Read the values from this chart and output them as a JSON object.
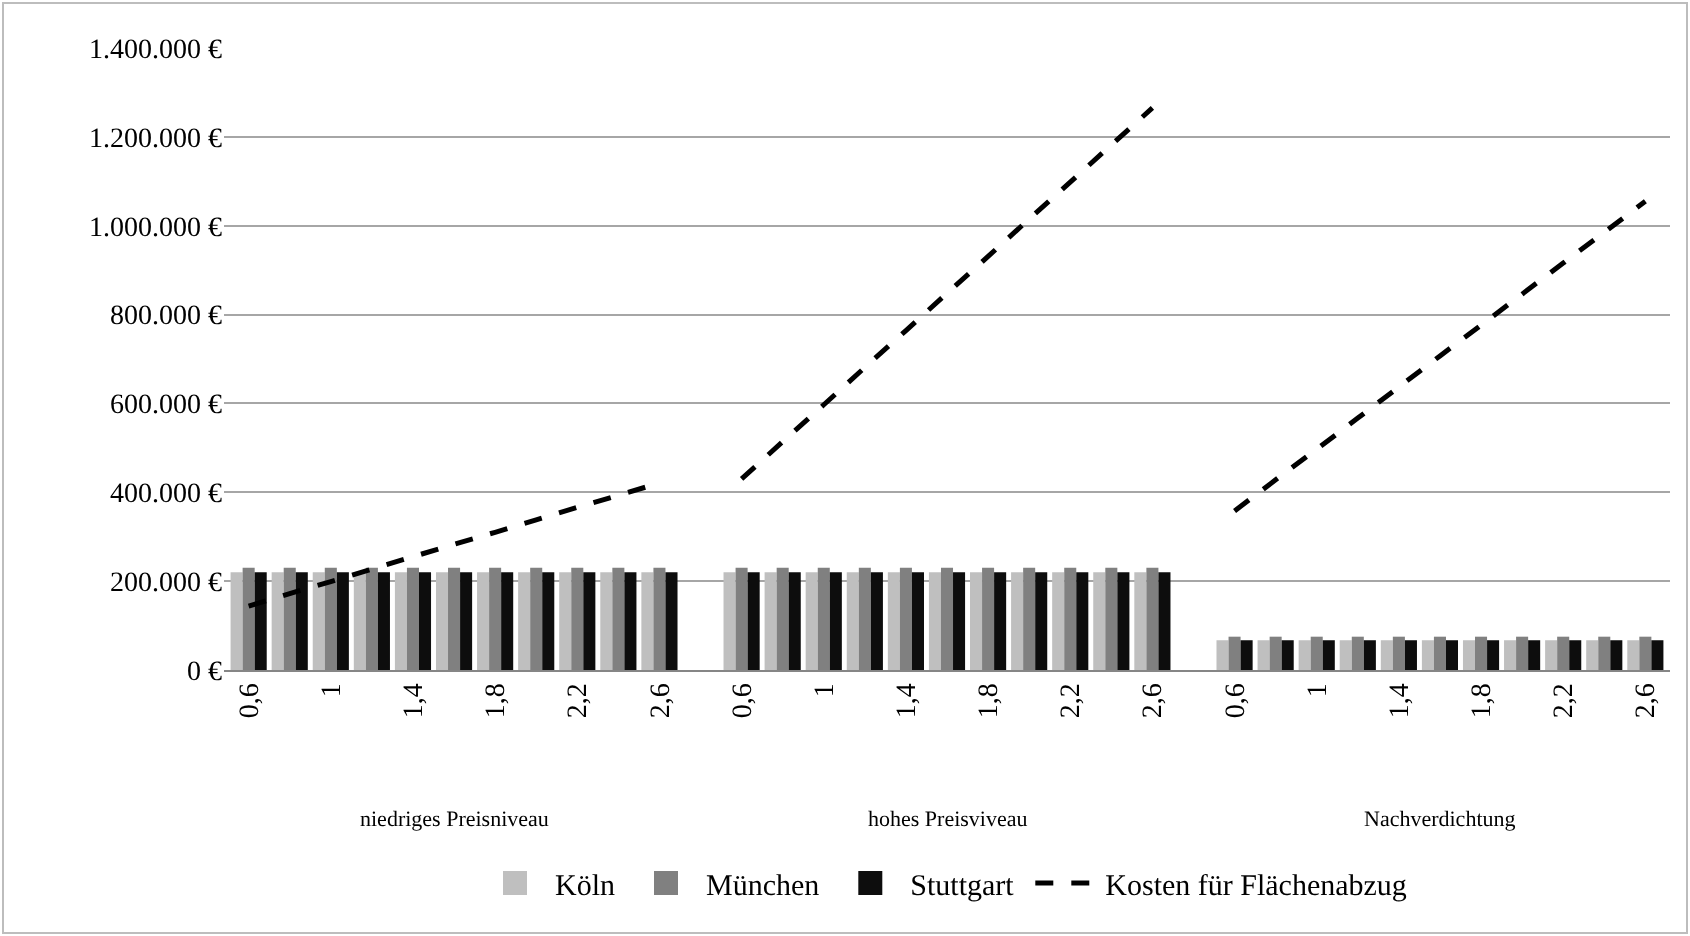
{
  "chart_data": {
    "type": "bar",
    "categories": [
      "0,6",
      null,
      "1",
      null,
      "1,4",
      null,
      "1,8",
      null,
      "2,2",
      null,
      "2,6",
      null,
      "0,6",
      null,
      "1",
      null,
      "1,4",
      null,
      "1,8",
      null,
      "2,2",
      null,
      "2,6",
      null,
      "0,6",
      null,
      "1",
      null,
      "1,4",
      null,
      "1,8",
      null,
      "2,2",
      null,
      "2,6"
    ],
    "series": [
      {
        "name": "Köln",
        "color": "#bfbfbf",
        "values": [
          220000,
          220000,
          220000,
          220000,
          220000,
          220000,
          220000,
          220000,
          220000,
          220000,
          220000,
          null,
          220000,
          220000,
          220000,
          220000,
          220000,
          220000,
          220000,
          220000,
          220000,
          220000,
          220000,
          null,
          67000,
          67000,
          67000,
          67000,
          67000,
          67000,
          67000,
          67000,
          67000,
          67000,
          67000
        ]
      },
      {
        "name": "München",
        "color": "#808080",
        "values": [
          230000,
          230000,
          230000,
          230000,
          230000,
          230000,
          230000,
          230000,
          230000,
          230000,
          230000,
          null,
          230000,
          230000,
          230000,
          230000,
          230000,
          230000,
          230000,
          230000,
          230000,
          230000,
          230000,
          null,
          75000,
          75000,
          75000,
          75000,
          75000,
          75000,
          75000,
          75000,
          75000,
          75000,
          75000
        ]
      },
      {
        "name": "Stuttgart",
        "color": "#0d0d0d",
        "values": [
          220000,
          220000,
          220000,
          220000,
          220000,
          220000,
          220000,
          220000,
          220000,
          220000,
          220000,
          null,
          220000,
          220000,
          220000,
          220000,
          220000,
          220000,
          220000,
          220000,
          220000,
          220000,
          220000,
          null,
          67000,
          67000,
          67000,
          67000,
          67000,
          67000,
          67000,
          67000,
          67000,
          67000,
          67000
        ]
      },
      {
        "name": "Kosten für Flächenabzug",
        "type": "line",
        "line_style": "dashed",
        "color": "#000000",
        "values": [
          144000,
          172000,
          199000,
          227000,
          255000,
          283000,
          310000,
          338000,
          366000,
          393000,
          421000,
          null,
          430000,
          514000,
          597000,
          681000,
          764000,
          848000,
          931000,
          1015000,
          1098000,
          1182000,
          1265000,
          null,
          358000,
          428000,
          497000,
          567000,
          637000,
          707000,
          776000,
          846000,
          916000,
          985000,
          1055000
        ]
      }
    ],
    "ylim": [
      0,
      1400000
    ],
    "yticks": [
      {
        "value": 0,
        "label": "0 €"
      },
      {
        "value": 200000,
        "label": "200.000 €"
      },
      {
        "value": 400000,
        "label": "400.000 €"
      },
      {
        "value": 600000,
        "label": "600.000 €"
      },
      {
        "value": 800000,
        "label": "800.000 €"
      },
      {
        "value": 1000000,
        "label": "1.000.000 €"
      },
      {
        "value": 1200000,
        "label": "1.200.000 €"
      },
      {
        "value": 1400000,
        "label": "1.400.000 €"
      }
    ],
    "grid": "y",
    "legend": "bottom",
    "annotations": [
      "niedriges Preisniveau",
      "hohes Preisviveau",
      "Nachverdichtung"
    ]
  }
}
